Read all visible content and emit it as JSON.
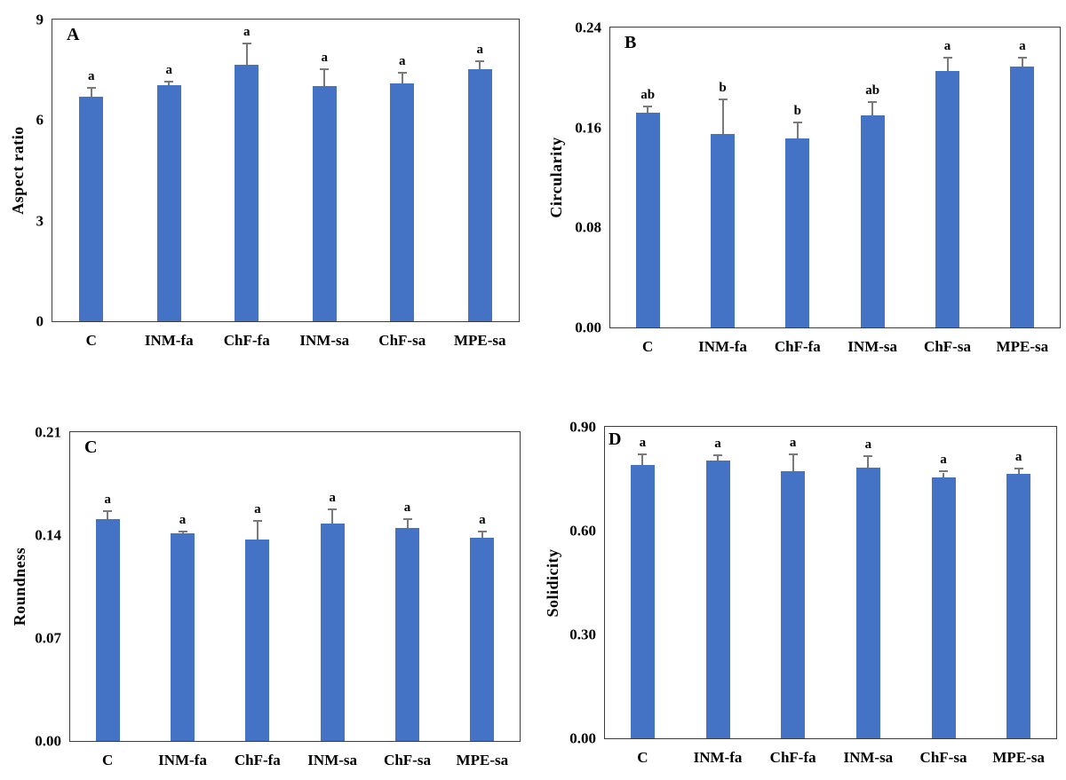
{
  "colors": {
    "bar": "#4472C4",
    "error": "#7a7a7a",
    "plot_border": "#3d3d3d",
    "text": "#000000",
    "background": "#ffffff"
  },
  "chart_data": [
    {
      "type": "bar",
      "panel_label": "A",
      "ylabel": "Aspect ratio",
      "xlabel": "",
      "ylim": [
        0,
        9
      ],
      "ytick_values": [
        0,
        3,
        6,
        9
      ],
      "ytick_labels": [
        "0",
        "3",
        "6",
        "9"
      ],
      "categories": [
        "C",
        "INM-fa",
        "ChF-fa",
        "INM-sa",
        "ChF-sa",
        "MPE-sa"
      ],
      "values": [
        6.7,
        7.05,
        7.65,
        7.01,
        7.1,
        7.52
      ],
      "errors": [
        0.24,
        0.08,
        0.6,
        0.48,
        0.28,
        0.21
      ],
      "sig_letters": [
        "a",
        "a",
        "a",
        "a",
        "a",
        "a"
      ],
      "grid": false,
      "legend": "none"
    },
    {
      "type": "bar",
      "panel_label": "B",
      "ylabel": "Circularity",
      "xlabel": "",
      "ylim": [
        0,
        0.24
      ],
      "ytick_values": [
        0,
        0.08,
        0.16,
        0.24
      ],
      "ytick_labels": [
        "0.00",
        "0.08",
        "0.16",
        "0.24"
      ],
      "categories": [
        "C",
        "INM-fa",
        "ChF-fa",
        "INM-sa",
        "ChF-sa",
        "MPE-sa"
      ],
      "values": [
        0.172,
        0.155,
        0.151,
        0.17,
        0.205,
        0.209
      ],
      "errors": [
        0.004,
        0.027,
        0.012,
        0.01,
        0.01,
        0.006
      ],
      "sig_letters": [
        "ab",
        "b",
        "b",
        "ab",
        "a",
        "a"
      ],
      "grid": false,
      "legend": "none"
    },
    {
      "type": "bar",
      "panel_label": "C",
      "ylabel": "Roundness",
      "xlabel": "",
      "ylim": [
        0,
        0.21
      ],
      "ytick_values": [
        0,
        0.07,
        0.14,
        0.21
      ],
      "ytick_labels": [
        "0.00",
        "0.07",
        "0.14",
        "0.21"
      ],
      "categories": [
        "C",
        "INM-fa",
        "ChF-fa",
        "INM-sa",
        "ChF-sa",
        "MPE-sa"
      ],
      "values": [
        0.151,
        0.141,
        0.137,
        0.148,
        0.145,
        0.138
      ],
      "errors": [
        0.005,
        0.001,
        0.012,
        0.009,
        0.005,
        0.004
      ],
      "sig_letters": [
        "a",
        "a",
        "a",
        "a",
        "a",
        "a"
      ],
      "grid": false,
      "legend": "none"
    },
    {
      "type": "bar",
      "panel_label": "D",
      "ylabel": "Solidicity",
      "xlabel": "",
      "ylim": [
        0,
        0.9
      ],
      "ytick_values": [
        0,
        0.3,
        0.6,
        0.9
      ],
      "ytick_labels": [
        "0.00",
        "0.30",
        "0.60",
        "0.90"
      ],
      "categories": [
        "C",
        "INM-fa",
        "ChF-fa",
        "INM-sa",
        "ChF-sa",
        "MPE-sa"
      ],
      "values": [
        0.791,
        0.802,
        0.771,
        0.781,
        0.753,
        0.763
      ],
      "errors": [
        0.028,
        0.013,
        0.048,
        0.032,
        0.015,
        0.014
      ],
      "sig_letters": [
        "a",
        "a",
        "a",
        "a",
        "a",
        "a"
      ],
      "grid": false,
      "legend": "none"
    }
  ]
}
